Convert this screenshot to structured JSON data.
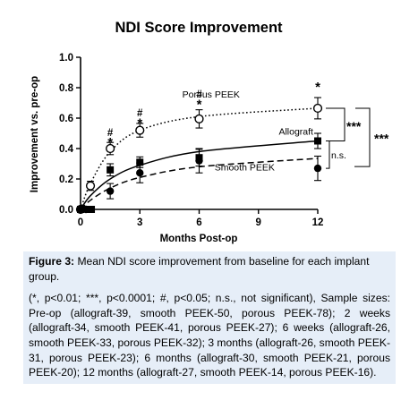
{
  "chart_data": {
    "type": "line",
    "title": "NDI Score Improvement",
    "xlabel": "Months Post-op",
    "ylabel": "Improvement vs. pre-op",
    "xlim": [
      0,
      12
    ],
    "ylim": [
      0,
      1.0
    ],
    "x_ticks": [
      0,
      3,
      6,
      9,
      12
    ],
    "x_tick_labels": [
      "0",
      "3",
      "6",
      "9",
      "12"
    ],
    "y_ticks": [
      0,
      0.2,
      0.4,
      0.6,
      0.8,
      1.0
    ],
    "y_tick_labels": [
      "0.0",
      "0.2",
      "0.4",
      "0.6",
      "0.8",
      "1.0"
    ],
    "grid": false,
    "x": [
      0,
      0.5,
      1.5,
      3,
      6,
      12
    ],
    "series": [
      {
        "name": "Porous PEEK",
        "marker": "open-circle",
        "line_style": "dotted",
        "values": [
          0.0,
          0.155,
          0.4,
          0.52,
          0.595,
          0.665
        ],
        "errors": [
          0.0,
          0.03,
          0.04,
          0.045,
          0.06,
          0.07
        ],
        "fit": [
          0.0,
          0.17,
          0.38,
          0.52,
          0.61,
          0.665
        ]
      },
      {
        "name": "Allograft",
        "marker": "filled-square",
        "line_style": "solid",
        "values": [
          0.0,
          0.0,
          0.26,
          0.31,
          0.34,
          0.45
        ],
        "errors": [
          0.0,
          0.02,
          0.04,
          0.035,
          0.055,
          0.05
        ],
        "fit": [
          0.0,
          0.09,
          0.2,
          0.29,
          0.38,
          0.45
        ]
      },
      {
        "name": "Smooth PEEK",
        "marker": "filled-circle",
        "line_style": "dashed",
        "values": [
          0.0,
          0.0,
          0.12,
          0.24,
          0.32,
          0.27
        ],
        "errors": [
          0.0,
          0.02,
          0.05,
          0.065,
          0.08,
          0.08
        ],
        "fit": [
          0.0,
          0.06,
          0.14,
          0.21,
          0.28,
          0.335
        ]
      }
    ],
    "annotations": [
      {
        "x": 1.5,
        "y": 0.505,
        "text": "#"
      },
      {
        "x": 1.5,
        "y": 0.465,
        "text": "*"
      },
      {
        "x": 3,
        "y": 0.635,
        "text": "#"
      },
      {
        "x": 3,
        "y": 0.59,
        "text": "*"
      },
      {
        "x": 6,
        "y": 0.76,
        "text": "#"
      },
      {
        "x": 6,
        "y": 0.715,
        "text": "*"
      },
      {
        "x": 12,
        "y": 0.83,
        "text": "*"
      }
    ],
    "significance_labels": {
      "porous_vs_allograft": "***",
      "allograft_vs_smooth": "n.s.",
      "porous_vs_smooth": "***"
    }
  },
  "caption": {
    "label": "Figure 3:",
    "title": "Mean NDI score improvement from baseline for each implant group.",
    "body": "(*, p<0.01; ***, p<0.0001; #, p<0.05; n.s., not significant), Sample sizes: Pre-op (allograft-39, smooth PEEK-50, porous PEEK-78); 2 weeks (allograft-34, smooth PEEK-41, porous PEEK-27); 6 weeks (allograft-26, smooth PEEK-33, porous PEEK-32); 3 months (allograft-26, smooth PEEK-31, porous PEEK-23); 6 months (allograft-30, smooth PEEK-21, porous PEEK-20); 12 months (allograft-27, smooth PEEK-14, porous PEEK-16).",
    "background_color": "#e6eef8"
  }
}
